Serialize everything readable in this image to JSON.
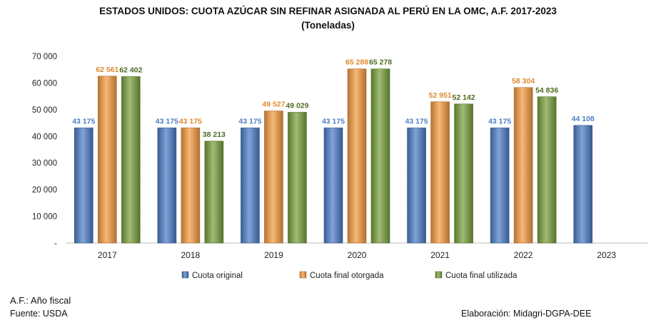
{
  "chart_data": {
    "type": "bar",
    "title": "ESTADOS UNIDOS: CUOTA AZÚCAR SIN REFINAR ASIGNADA AL PERÚ EN LA OMC, A.F. 2017-2023",
    "subtitle": "(Toneladas)",
    "xlabel": "",
    "ylabel": "",
    "ylim": [
      0,
      70000
    ],
    "yticks": [
      0,
      10000,
      20000,
      30000,
      40000,
      50000,
      60000,
      70000
    ],
    "ytick_labels": [
      "-",
      "10 000",
      "20 000",
      "30 000",
      "40 000",
      "50 000",
      "60 000",
      "70 000"
    ],
    "categories": [
      "2017",
      "2018",
      "2019",
      "2020",
      "2021",
      "2022",
      "2023"
    ],
    "legend_position": "bottom",
    "series": [
      {
        "name": "Cuota original",
        "color": "#4A7CC7",
        "label_color": "#4F7FC1",
        "values": [
          43175,
          43175,
          43175,
          43175,
          43175,
          43175,
          44108
        ],
        "labels": [
          "43 175",
          "43 175",
          "43 175",
          "43 175",
          "43 175",
          "43 175",
          "44 108"
        ]
      },
      {
        "name": "Cuota final otorgada",
        "color": "#F79A3E",
        "label_color": "#E0892E",
        "values": [
          62561,
          43175,
          49527,
          65288,
          52951,
          58304,
          null
        ],
        "labels": [
          "62 561",
          "43 175",
          "49 527",
          "65 288",
          "52 951",
          "58 304",
          ""
        ]
      },
      {
        "name": "Cuota final utilizada",
        "color": "#77A03A",
        "label_color": "#4E6B22",
        "values": [
          62402,
          38213,
          49029,
          65278,
          52142,
          54836,
          null
        ],
        "labels": [
          "62 402",
          "38 213",
          "49 029",
          "65 278",
          "52 142",
          "54 836",
          ""
        ]
      }
    ]
  },
  "notes": {
    "af": "A.F.: Año fiscal",
    "source": "Fuente: USDA",
    "credit": "Elaboración: Midagri-DGPA-DEE"
  }
}
